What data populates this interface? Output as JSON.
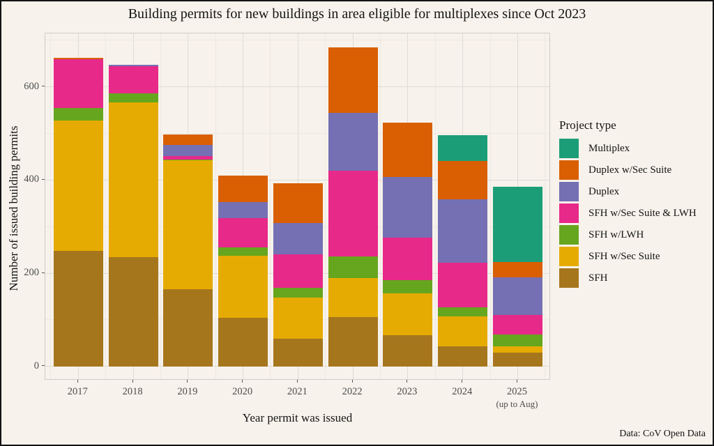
{
  "figure": {
    "caption": "Data: CoV Open Data",
    "background_color": "#F7F2EB",
    "border_color": "#141414"
  },
  "chart_data": {
    "type": "bar",
    "stacked": true,
    "title": "Building permits for new buildings in area eligible for multiplexes since Oct 2023",
    "xlabel": "Year permit was issued",
    "ylabel": "Number of issued building permits",
    "categories": [
      "2017",
      "2018",
      "2019",
      "2020",
      "2021",
      "2022",
      "2023",
      "2024",
      "2025"
    ],
    "x_note": {
      "category": "2025",
      "label": "(up to Aug)"
    },
    "series": [
      {
        "name": "SFH",
        "color": "#A6761D",
        "values": [
          248,
          234,
          165,
          104,
          59,
          106,
          67,
          43,
          29
        ]
      },
      {
        "name": "SFH w/Sec Suite",
        "color": "#E6AB02",
        "values": [
          280,
          332,
          277,
          134,
          88,
          84,
          89,
          64,
          14
        ]
      },
      {
        "name": "SFH w/LWH",
        "color": "#66A61E",
        "values": [
          27,
          20,
          2,
          18,
          21,
          46,
          29,
          20,
          25
        ]
      },
      {
        "name": "SFH w/Sec Suite & LWH",
        "color": "#E7298A",
        "values": [
          105,
          59,
          8,
          63,
          72,
          184,
          92,
          95,
          42
        ]
      },
      {
        "name": "Duplex",
        "color": "#7570B3",
        "values": [
          0,
          3,
          23,
          34,
          68,
          124,
          130,
          137,
          81
        ]
      },
      {
        "name": "Duplex w/Sec Suite",
        "color": "#D95F02",
        "values": [
          3,
          0,
          23,
          56,
          85,
          141,
          116,
          82,
          33
        ]
      },
      {
        "name": "Multiplex",
        "color": "#1B9E77",
        "values": [
          0,
          0,
          0,
          0,
          0,
          0,
          0,
          55,
          161
        ]
      }
    ],
    "totals": [
      663,
      648,
      498,
      409,
      393,
      685,
      523,
      496,
      385
    ],
    "ylim": [
      0,
      715
    ],
    "y_ticks": [
      0,
      200,
      400,
      600
    ],
    "y_minor_ticks": [
      100,
      300,
      500,
      700
    ],
    "grid": "on",
    "legend": {
      "title": "Project type",
      "position": "right"
    }
  }
}
